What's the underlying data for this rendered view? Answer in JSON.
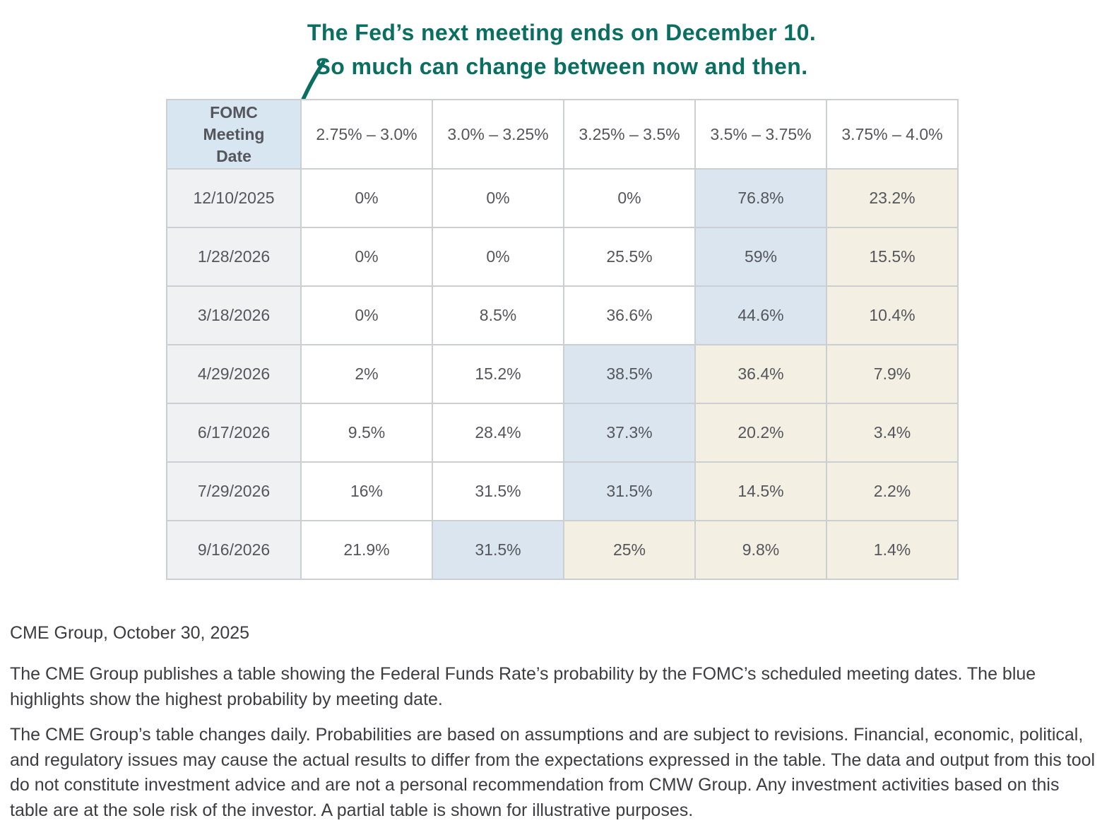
{
  "annotation": {
    "line1": "The Fed’s next meeting ends on December 10.",
    "line2": "So much can change between now and then."
  },
  "chart_data": {
    "type": "table",
    "corner_header": "FOMC Meeting Date",
    "columns": [
      "2.75% – 3.0%",
      "3.0% – 3.25%",
      "3.25% – 3.5%",
      "3.5% – 3.75%",
      "3.75% – 4.0%"
    ],
    "rows": [
      {
        "date": "12/10/2025",
        "cells": [
          {
            "value": "0%",
            "highlight": "none"
          },
          {
            "value": "0%",
            "highlight": "none"
          },
          {
            "value": "0%",
            "highlight": "none"
          },
          {
            "value": "76.8%",
            "highlight": "blue"
          },
          {
            "value": "23.2%",
            "highlight": "beige"
          }
        ]
      },
      {
        "date": "1/28/2026",
        "cells": [
          {
            "value": "0%",
            "highlight": "none"
          },
          {
            "value": "0%",
            "highlight": "none"
          },
          {
            "value": "25.5%",
            "highlight": "none"
          },
          {
            "value": "59%",
            "highlight": "blue"
          },
          {
            "value": "15.5%",
            "highlight": "beige"
          }
        ]
      },
      {
        "date": "3/18/2026",
        "cells": [
          {
            "value": "0%",
            "highlight": "none"
          },
          {
            "value": "8.5%",
            "highlight": "none"
          },
          {
            "value": "36.6%",
            "highlight": "none"
          },
          {
            "value": "44.6%",
            "highlight": "blue"
          },
          {
            "value": "10.4%",
            "highlight": "beige"
          }
        ]
      },
      {
        "date": "4/29/2026",
        "cells": [
          {
            "value": "2%",
            "highlight": "none"
          },
          {
            "value": "15.2%",
            "highlight": "none"
          },
          {
            "value": "38.5%",
            "highlight": "blue"
          },
          {
            "value": "36.4%",
            "highlight": "beige"
          },
          {
            "value": "7.9%",
            "highlight": "beige"
          }
        ]
      },
      {
        "date": "6/17/2026",
        "cells": [
          {
            "value": "9.5%",
            "highlight": "none"
          },
          {
            "value": "28.4%",
            "highlight": "none"
          },
          {
            "value": "37.3%",
            "highlight": "blue"
          },
          {
            "value": "20.2%",
            "highlight": "beige"
          },
          {
            "value": "3.4%",
            "highlight": "beige"
          }
        ]
      },
      {
        "date": "7/29/2026",
        "cells": [
          {
            "value": "16%",
            "highlight": "none"
          },
          {
            "value": "31.5%",
            "highlight": "none"
          },
          {
            "value": "31.5%",
            "highlight": "blue"
          },
          {
            "value": "14.5%",
            "highlight": "beige"
          },
          {
            "value": "2.2%",
            "highlight": "beige"
          }
        ]
      },
      {
        "date": "9/16/2026",
        "cells": [
          {
            "value": "21.9%",
            "highlight": "none"
          },
          {
            "value": "31.5%",
            "highlight": "blue"
          },
          {
            "value": "25%",
            "highlight": "beige"
          },
          {
            "value": "9.8%",
            "highlight": "beige"
          },
          {
            "value": "1.4%",
            "highlight": "beige"
          }
        ]
      }
    ]
  },
  "colors": {
    "annotation_teal": "#0a6e60",
    "highlight_blue": "#dae5ef",
    "highlight_beige": "#f3efe2",
    "header_blue": "#d8e6f2",
    "date_column_gray": "#f0f1f3",
    "border_gray": "#cbcfd2"
  },
  "footer": {
    "source": "CME Group, October 30, 2025",
    "para1": "The CME Group publishes a table showing the Federal Funds Rate’s probability by the FOMC’s scheduled meeting dates. The blue highlights show the highest probability by meeting date.",
    "para2": "The CME Group’s table changes daily. Probabilities are based on assumptions and are subject to revisions. Financial, economic, political, and regulatory issues may cause the actual results to differ from the expectations expressed in the table. The data and output from this tool do not constitute investment advice and are not a personal recommendation from CMW Group. Any investment activities based on this table are at the sole risk of the investor. A partial table is shown for illustrative purposes."
  }
}
